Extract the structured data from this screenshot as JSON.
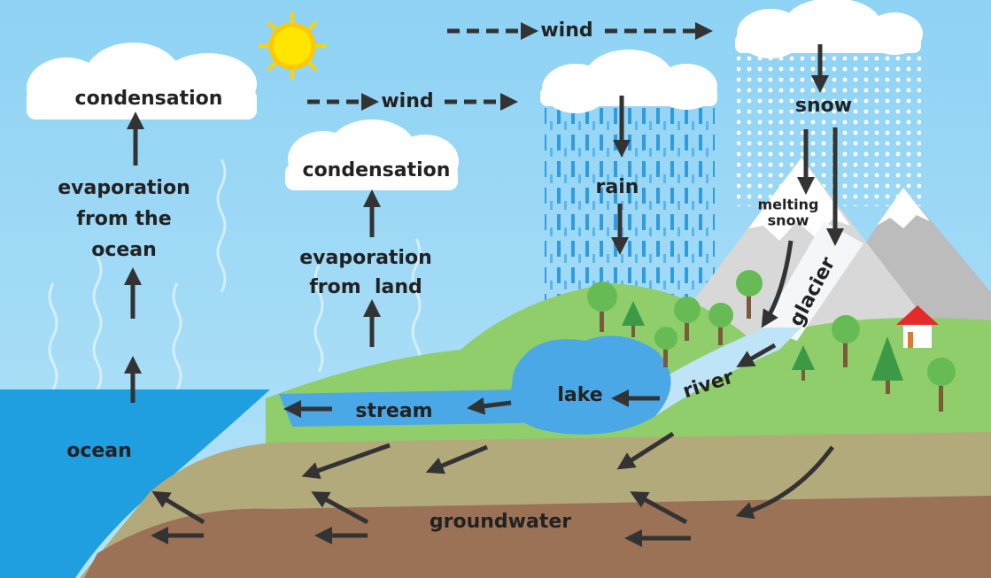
{
  "labels": {
    "condensation_ocean": "condensation",
    "evaporation_ocean": [
      "evaporation",
      "from the",
      "ocean"
    ],
    "wind_top": "wind",
    "wind_middle": "wind",
    "condensation_land": "condensation",
    "evaporation_land": [
      "evaporation",
      "from  land"
    ],
    "rain": "rain",
    "snow": "snow",
    "melting_snow": [
      "melting",
      "snow"
    ],
    "glacier": "glacier",
    "lake": "lake",
    "river": "river",
    "stream": "stream",
    "ocean": "ocean",
    "groundwater": "groundwater"
  }
}
